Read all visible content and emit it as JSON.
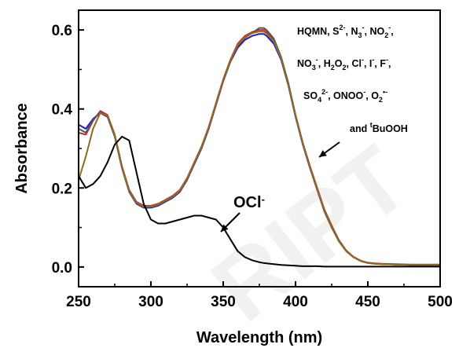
{
  "chart_data": {
    "type": "line",
    "xlabel": "Wavelength (nm)",
    "ylabel": "Absorbance",
    "xlim": [
      250,
      500
    ],
    "ylim": [
      -0.05,
      0.65
    ],
    "xticks": [
      250,
      300,
      350,
      400,
      450,
      500
    ],
    "yticks": [
      0.0,
      0.2,
      0.4,
      0.6
    ],
    "xtick_labels": [
      "250",
      "300",
      "350",
      "400",
      "450",
      "500"
    ],
    "ytick_labels": [
      "0.0",
      "0.2",
      "0.4",
      "0.6"
    ],
    "grid": false,
    "x": [
      250,
      255,
      260,
      265,
      270,
      275,
      280,
      285,
      290,
      295,
      300,
      305,
      310,
      315,
      320,
      325,
      330,
      335,
      340,
      345,
      350,
      355,
      360,
      365,
      370,
      375,
      378,
      380,
      385,
      390,
      395,
      400,
      405,
      410,
      415,
      420,
      425,
      430,
      435,
      440,
      445,
      450,
      455,
      460,
      470,
      480,
      490,
      500
    ],
    "series": [
      {
        "color": "#1f1fbf",
        "values": [
          0.36,
          0.35,
          0.375,
          0.39,
          0.38,
          0.33,
          0.25,
          0.19,
          0.16,
          0.15,
          0.15,
          0.155,
          0.165,
          0.175,
          0.19,
          0.22,
          0.26,
          0.3,
          0.35,
          0.41,
          0.47,
          0.52,
          0.555,
          0.575,
          0.585,
          0.59,
          0.59,
          0.585,
          0.565,
          0.525,
          0.46,
          0.38,
          0.31,
          0.25,
          0.195,
          0.14,
          0.1,
          0.065,
          0.04,
          0.025,
          0.015,
          0.01,
          0.008,
          0.007,
          0.006,
          0.005,
          0.005,
          0.005
        ]
      },
      {
        "color": "#d62728",
        "values": [
          0.34,
          0.335,
          0.37,
          0.395,
          0.385,
          0.335,
          0.255,
          0.195,
          0.165,
          0.155,
          0.155,
          0.16,
          0.17,
          0.18,
          0.195,
          0.225,
          0.265,
          0.305,
          0.355,
          0.415,
          0.475,
          0.525,
          0.565,
          0.585,
          0.595,
          0.6,
          0.6,
          0.595,
          0.575,
          0.53,
          0.465,
          0.385,
          0.315,
          0.255,
          0.2,
          0.145,
          0.105,
          0.068,
          0.042,
          0.026,
          0.016,
          0.011,
          0.009,
          0.008,
          0.007,
          0.006,
          0.006,
          0.006
        ]
      },
      {
        "color": "#555555",
        "values": [
          0.35,
          0.34,
          0.372,
          0.392,
          0.382,
          0.332,
          0.252,
          0.192,
          0.162,
          0.152,
          0.152,
          0.157,
          0.167,
          0.177,
          0.192,
          0.222,
          0.262,
          0.302,
          0.352,
          0.412,
          0.472,
          0.522,
          0.56,
          0.58,
          0.592,
          0.605,
          0.605,
          0.6,
          0.578,
          0.532,
          0.466,
          0.384,
          0.313,
          0.253,
          0.197,
          0.142,
          0.102,
          0.066,
          0.041,
          0.025,
          0.015,
          0.01,
          0.008,
          0.007,
          0.006,
          0.005,
          0.005,
          0.005
        ]
      },
      {
        "color": "#8c6d1f",
        "values": [
          0.22,
          0.28,
          0.35,
          0.39,
          0.383,
          0.333,
          0.253,
          0.193,
          0.163,
          0.153,
          0.153,
          0.158,
          0.168,
          0.178,
          0.193,
          0.223,
          0.263,
          0.303,
          0.353,
          0.413,
          0.473,
          0.523,
          0.562,
          0.582,
          0.592,
          0.596,
          0.596,
          0.591,
          0.571,
          0.528,
          0.462,
          0.382,
          0.312,
          0.252,
          0.196,
          0.141,
          0.101,
          0.065,
          0.04,
          0.025,
          0.015,
          0.01,
          0.008,
          0.007,
          0.006,
          0.005,
          0.005,
          0.005
        ]
      },
      {
        "color": "#000000",
        "values": [
          0.23,
          0.2,
          0.21,
          0.23,
          0.265,
          0.31,
          0.33,
          0.32,
          0.24,
          0.16,
          0.12,
          0.11,
          0.11,
          0.115,
          0.12,
          0.125,
          0.13,
          0.13,
          0.125,
          0.12,
          0.1,
          0.07,
          0.04,
          0.025,
          0.017,
          0.012,
          0.01,
          0.009,
          0.007,
          0.005,
          0.004,
          0.003,
          0.002,
          0.002,
          0.002,
          0.001,
          0.001,
          0.001,
          0.001,
          0.001,
          0.001,
          0.001,
          0.001,
          0.001,
          0.001,
          0.001,
          0.001,
          0.001
        ]
      }
    ],
    "annotations": {
      "legend_line1": [
        "HQMN, S",
        "2-",
        ", N",
        "3",
        "-",
        ", NO",
        "2",
        "-",
        ","
      ],
      "legend_line2": [
        "NO",
        "3",
        "-",
        ", H",
        "2",
        "O",
        "2",
        ", Cl",
        "-",
        ", I",
        "-",
        ", F",
        "-",
        ","
      ],
      "legend_line3": [
        "SO",
        "4",
        "2-",
        ", ONOO",
        "-",
        ", O",
        "2",
        "•-"
      ],
      "legend_line4": [
        "and ",
        "t",
        "BuOOH"
      ],
      "ocl_label": [
        "OCl",
        "-"
      ]
    }
  },
  "watermark_text": "RIPT"
}
